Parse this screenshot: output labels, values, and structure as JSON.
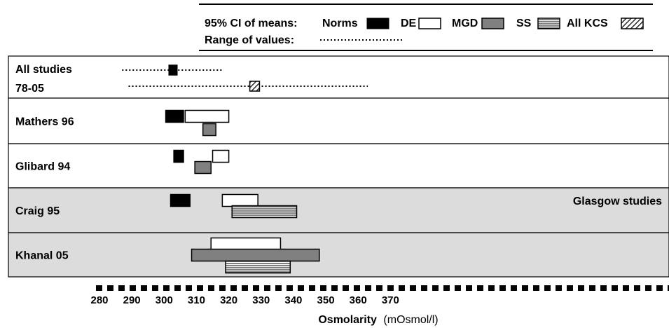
{
  "chart_data": {
    "type": "bar",
    "subtype": "range-interval",
    "xlabel": "Osmolarity",
    "xunit": "(mOsmol/l)",
    "xlim": [
      270,
      377
    ],
    "xticks": [
      280,
      290,
      300,
      310,
      320,
      330,
      340,
      350,
      360,
      370
    ],
    "legend": {
      "means_label": "95% CI of means:",
      "range_label": "Range of values:",
      "placement": "top-right",
      "entries": [
        {
          "key": "norms",
          "label": "Norms",
          "fill": "#000000"
        },
        {
          "key": "de",
          "label": "DE",
          "fill": "#ffffff"
        },
        {
          "key": "mgd",
          "label": "MGD",
          "fill": "#808080"
        },
        {
          "key": "ss",
          "label": "SS",
          "fill": "horizontal-lines"
        },
        {
          "key": "kcs",
          "label": "All KCS",
          "fill": "diagonal-hatch"
        }
      ]
    },
    "annotation": "Glasgow studies",
    "groups": [
      {
        "label_lines": [
          "All studies",
          "78-05"
        ],
        "shaded": false,
        "ranges": [
          {
            "series": "norms",
            "from": 287,
            "to": 318
          },
          {
            "series": "kcs",
            "from": 289,
            "to": 363
          }
        ],
        "intervals": [
          {
            "series": "norms",
            "from": 301.5,
            "to": 304.0,
            "line": 0
          },
          {
            "series": "kcs",
            "from": 326.5,
            "to": 329.5,
            "line": 1
          }
        ]
      },
      {
        "label_lines": [
          "Mathers 96"
        ],
        "shaded": false,
        "ranges": [],
        "intervals": [
          {
            "series": "norms",
            "from": 300.5,
            "to": 306.0,
            "line": 0
          },
          {
            "series": "de",
            "from": 306.5,
            "to": 320.0,
            "line": 0
          },
          {
            "series": "mgd",
            "from": 312.0,
            "to": 316.0,
            "line": 1
          }
        ]
      },
      {
        "label_lines": [
          "Glibard 94"
        ],
        "shaded": false,
        "ranges": [],
        "intervals": [
          {
            "series": "norms",
            "from": 303.0,
            "to": 306.0,
            "line": 0
          },
          {
            "series": "de",
            "from": 315.0,
            "to": 320.0,
            "line": 0
          },
          {
            "series": "mgd",
            "from": 309.5,
            "to": 314.5,
            "line": 1
          }
        ]
      },
      {
        "label_lines": [
          "Craig 95"
        ],
        "shaded": true,
        "ranges": [],
        "intervals": [
          {
            "series": "norms",
            "from": 302.0,
            "to": 308.0,
            "line": 0
          },
          {
            "series": "de",
            "from": 318.0,
            "to": 329.0,
            "line": 0
          },
          {
            "series": "ss",
            "from": 321.0,
            "to": 341.0,
            "line": 1
          }
        ]
      },
      {
        "label_lines": [
          "Khanal 05"
        ],
        "shaded": true,
        "ranges": [],
        "intervals": [
          {
            "series": "de",
            "from": 314.5,
            "to": 336.0,
            "line": 0
          },
          {
            "series": "mgd",
            "from": 308.5,
            "to": 348.0,
            "line": 1
          },
          {
            "series": "ss",
            "from": 319.0,
            "to": 339.0,
            "line": 2
          }
        ]
      }
    ]
  }
}
